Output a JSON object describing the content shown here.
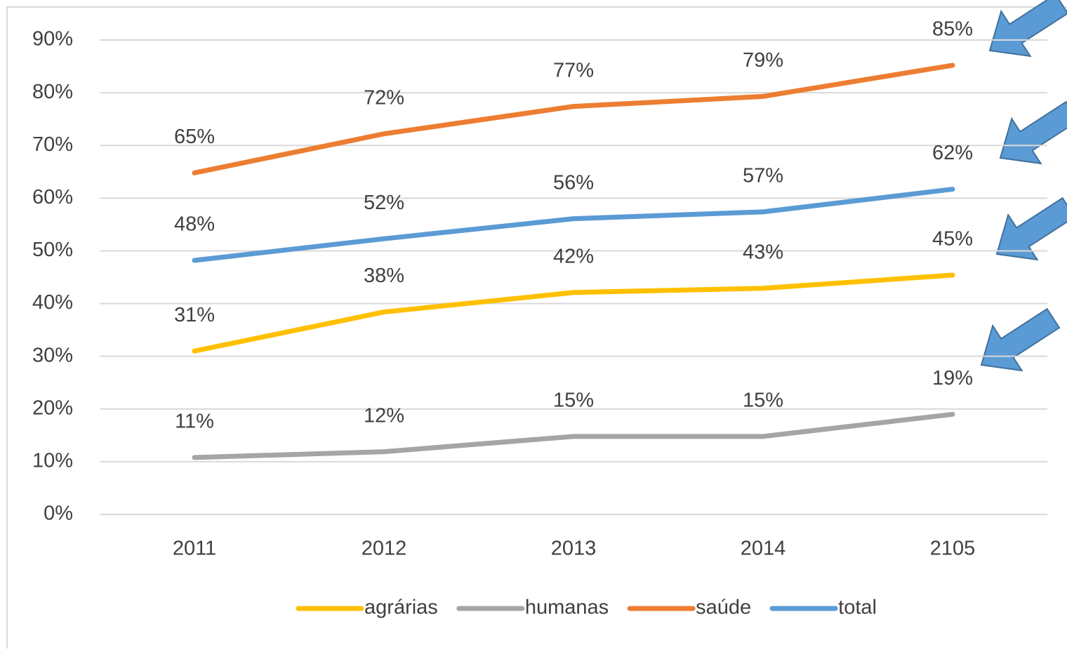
{
  "chart_data": {
    "type": "line",
    "categories": [
      "2011",
      "2012",
      "2013",
      "2014",
      "2105"
    ],
    "series": [
      {
        "name": "agrárias",
        "color": "#ffc000",
        "values": [
          31.0,
          38.4,
          42.1,
          42.9,
          45.4
        ],
        "value_labels": [
          "31%",
          "38%",
          "42%",
          "43%",
          "45%"
        ]
      },
      {
        "name": "humanas",
        "color": "#a5a5a5",
        "values": [
          10.8,
          11.9,
          14.8,
          14.8,
          19.0
        ],
        "value_labels": [
          "11%",
          "12%",
          "15%",
          "15%",
          "19%"
        ]
      },
      {
        "name": "saúde",
        "color": "#ed7d31",
        "values": [
          64.8,
          72.2,
          77.4,
          79.3,
          85.2
        ],
        "value_labels": [
          "65%",
          "72%",
          "77%",
          "79%",
          "85%"
        ]
      },
      {
        "name": "total",
        "color": "#5b9bd5",
        "values": [
          48.2,
          52.3,
          56.1,
          57.4,
          61.7
        ],
        "value_labels": [
          "48%",
          "52%",
          "56%",
          "57%",
          "62%"
        ]
      }
    ],
    "ylim": [
      0,
      90
    ],
    "yticks": [
      {
        "value": 0,
        "label": "0%"
      },
      {
        "value": 10,
        "label": "10%"
      },
      {
        "value": 20,
        "label": "20%"
      },
      {
        "value": 30,
        "label": "30%"
      },
      {
        "value": 40,
        "label": "40%"
      },
      {
        "value": 50,
        "label": "50%"
      },
      {
        "value": 60,
        "label": "60%"
      },
      {
        "value": 70,
        "label": "70%"
      },
      {
        "value": 80,
        "label": "80%"
      },
      {
        "value": 90,
        "label": "90%"
      }
    ],
    "grid": true,
    "legend": "bottom"
  }
}
